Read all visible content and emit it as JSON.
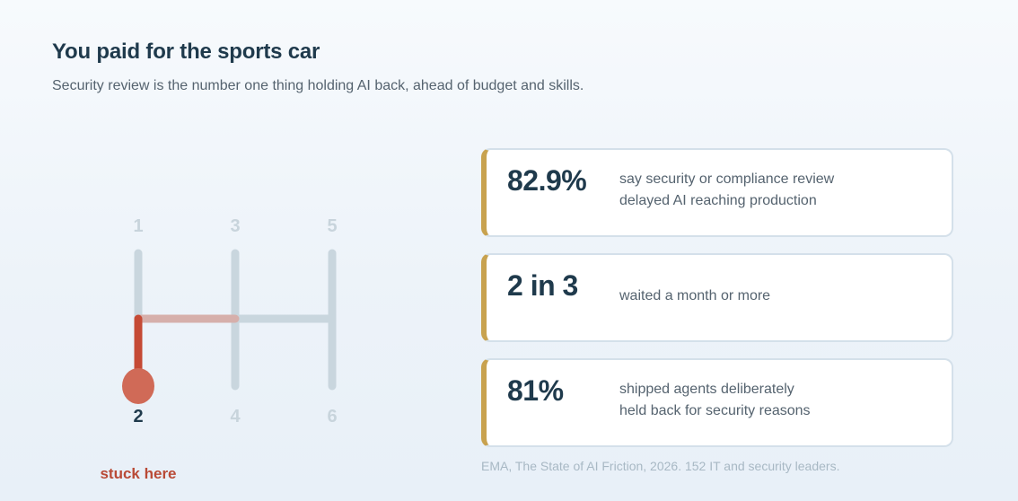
{
  "header": {
    "title": "You paid for the sports car",
    "subtitle": "Security review is the number one thing holding AI back, ahead of budget and skills."
  },
  "shifter": {
    "gears_top": [
      "1",
      "3",
      "5"
    ],
    "gears_bottom": [
      "2",
      "4",
      "6"
    ],
    "current_gear": "2",
    "stuck_label": "stuck here",
    "colors": {
      "track": "#c9d6de",
      "active": "#c54a35",
      "knob": "#d06a57",
      "label_inactive": "#c8d4dc",
      "label_active": "#1f3a4c"
    }
  },
  "stats": [
    {
      "value": "82.9%",
      "lines": [
        "say security or compliance review",
        "delayed AI reaching production"
      ]
    },
    {
      "value": "2 in 3",
      "lines": [
        "waited a month or more"
      ]
    },
    {
      "value": "81%",
      "lines": [
        "shipped agents deliberately",
        "held back for security reasons"
      ]
    }
  ],
  "source": "EMA, The State of AI Friction, 2026. 152 IT and security leaders.",
  "colors": {
    "accent": "#c8a24f",
    "heading": "#1f3a4c",
    "muted": "#55636f",
    "source": "#a8b8c4"
  }
}
